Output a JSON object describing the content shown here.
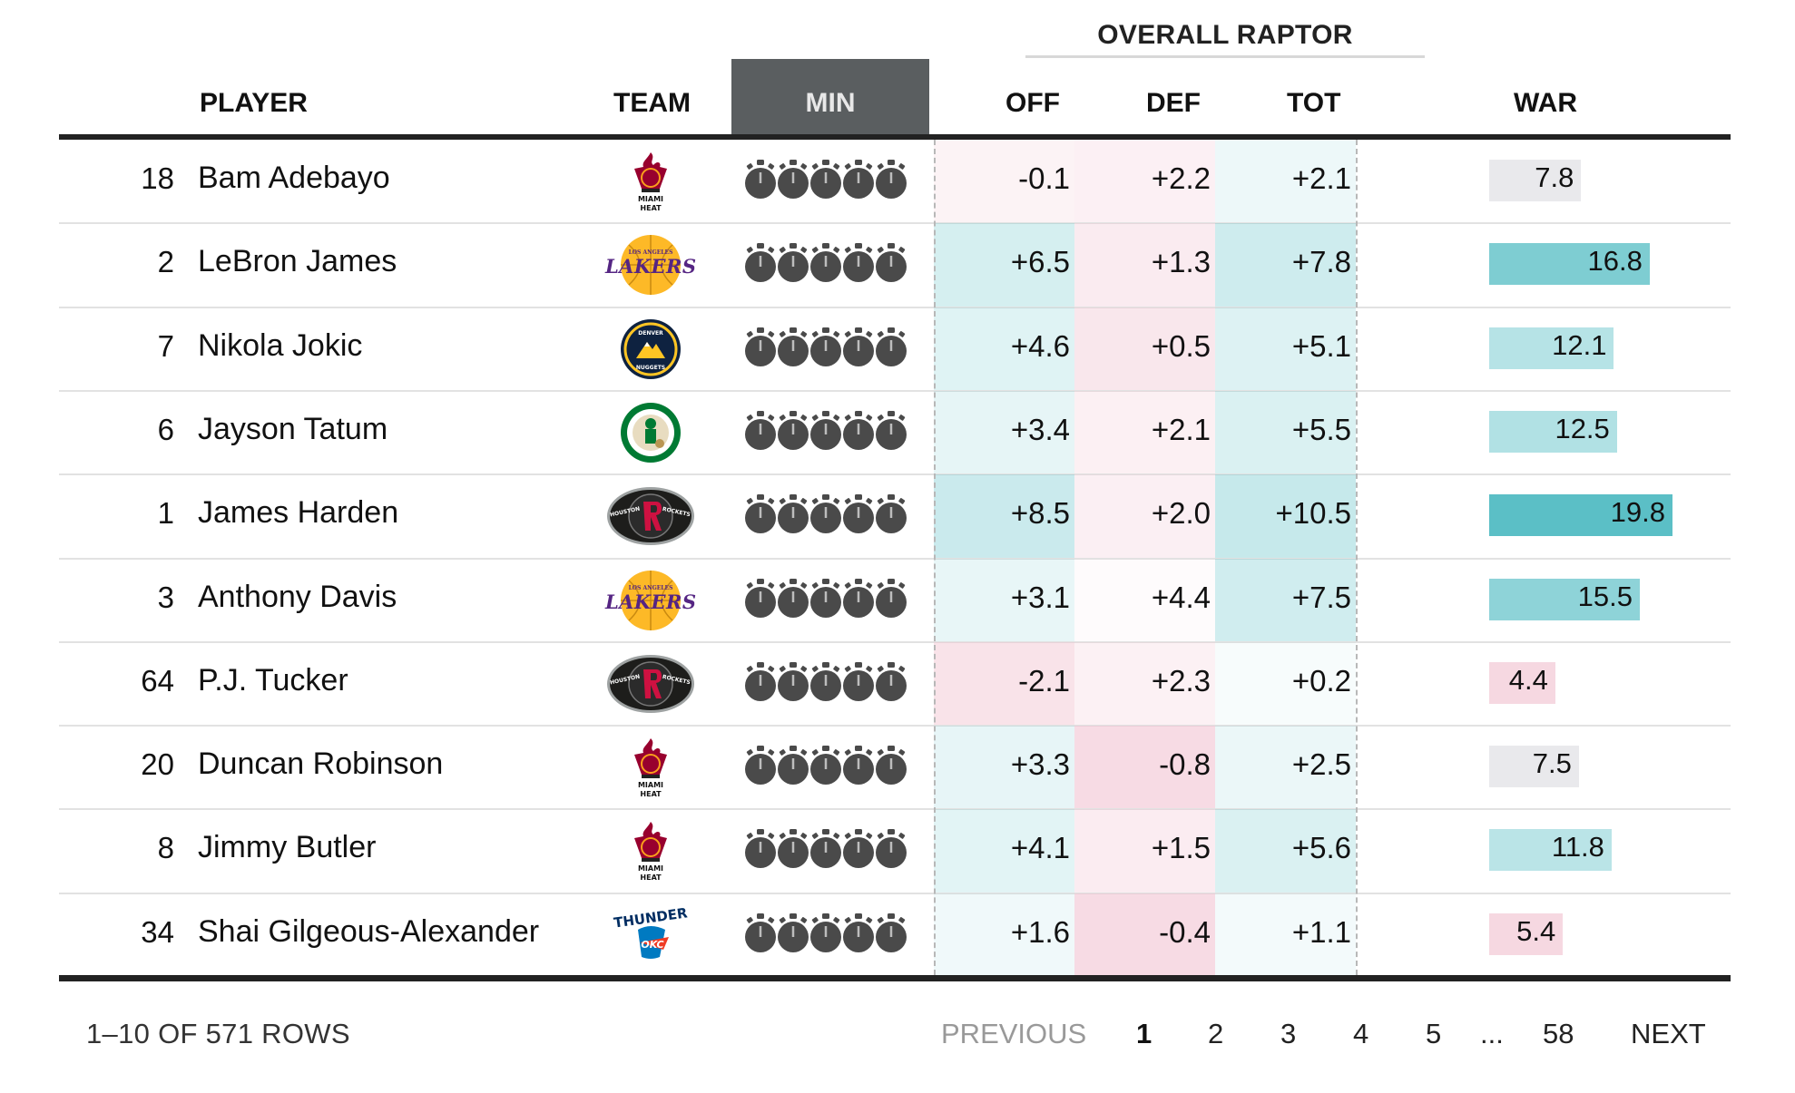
{
  "header": {
    "group_title": "OVERALL RAPTOR",
    "columns": {
      "player": "PLAYER",
      "team": "TEAM",
      "min": "MIN",
      "off": "OFF",
      "def": "DEF",
      "tot": "TOT",
      "war": "WAR"
    }
  },
  "colors": {
    "header_min_bg": "#5a5e60",
    "positive": "#5bbfc6",
    "negative": "#f3c9d4",
    "neutral": "#e9e9ec",
    "rule": "#222222"
  },
  "rows": [
    {
      "rank": "18",
      "player": "Bam Adebayo",
      "team_icon": "miami-heat-logo",
      "minutes_icons": 5,
      "off": "-0.1",
      "def": "+2.2",
      "tot": "+2.1",
      "war": "7.8",
      "war_value": 7.8
    },
    {
      "rank": "2",
      "player": "LeBron James",
      "team_icon": "los-angeles-lakers-logo",
      "minutes_icons": 5,
      "off": "+6.5",
      "def": "+1.3",
      "tot": "+7.8",
      "war": "16.8",
      "war_value": 16.8
    },
    {
      "rank": "7",
      "player": "Nikola Jokic",
      "team_icon": "denver-nuggets-logo",
      "minutes_icons": 5,
      "off": "+4.6",
      "def": "+0.5",
      "tot": "+5.1",
      "war": "12.1",
      "war_value": 12.1
    },
    {
      "rank": "6",
      "player": "Jayson Tatum",
      "team_icon": "boston-celtics-logo",
      "minutes_icons": 5,
      "off": "+3.4",
      "def": "+2.1",
      "tot": "+5.5",
      "war": "12.5",
      "war_value": 12.5
    },
    {
      "rank": "1",
      "player": "James Harden",
      "team_icon": "houston-rockets-logo",
      "minutes_icons": 5,
      "off": "+8.5",
      "def": "+2.0",
      "tot": "+10.5",
      "war": "19.8",
      "war_value": 19.8
    },
    {
      "rank": "3",
      "player": "Anthony Davis",
      "team_icon": "los-angeles-lakers-logo",
      "minutes_icons": 5,
      "off": "+3.1",
      "def": "+4.4",
      "tot": "+7.5",
      "war": "15.5",
      "war_value": 15.5
    },
    {
      "rank": "64",
      "player": "P.J. Tucker",
      "team_icon": "houston-rockets-logo",
      "minutes_icons": 5,
      "off": "-2.1",
      "def": "+2.3",
      "tot": "+0.2",
      "war": "4.4",
      "war_value": 4.4
    },
    {
      "rank": "20",
      "player": "Duncan Robinson",
      "team_icon": "miami-heat-logo",
      "minutes_icons": 5,
      "off": "+3.3",
      "def": "-0.8",
      "tot": "+2.5",
      "war": "7.5",
      "war_value": 7.5
    },
    {
      "rank": "8",
      "player": "Jimmy Butler",
      "team_icon": "miami-heat-logo",
      "minutes_icons": 5,
      "off": "+4.1",
      "def": "+1.5",
      "tot": "+5.6",
      "war": "11.8",
      "war_value": 11.8
    },
    {
      "rank": "34",
      "player": "Shai Gilgeous-Alexander",
      "team_icon": "oklahoma-city-thunder-logo",
      "minutes_icons": 5,
      "off": "+1.6",
      "def": "-0.4",
      "tot": "+1.1",
      "war": "5.4",
      "war_value": 5.4
    }
  ],
  "logo_text": {
    "heat": [
      "MIAMI",
      "HEAT"
    ],
    "lakers": [
      "LOS ANGELES",
      "LAKERS"
    ],
    "nuggets": [
      "DENVER",
      "NUGGETS"
    ],
    "rockets": [
      "HOUSTON",
      "ROCKETS"
    ],
    "thunder": [
      "THUNDER",
      "OKC"
    ]
  },
  "footer": {
    "row_count": "1–10 OF 571 ROWS",
    "previous": "PREVIOUS",
    "pages": [
      "1",
      "2",
      "3",
      "4",
      "5",
      "...",
      "58"
    ],
    "current_page": "1",
    "next": "NEXT"
  }
}
